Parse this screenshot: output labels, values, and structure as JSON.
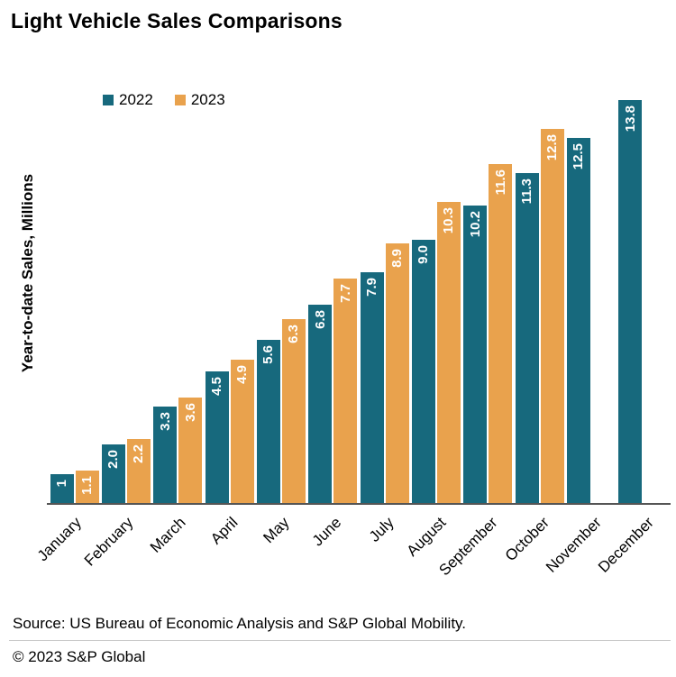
{
  "title": "Light Vehicle Sales Comparisons",
  "y_axis_label": "Year-to-date Sales, Millions",
  "legend": {
    "items": [
      {
        "label": "2022",
        "color": "#17697D"
      },
      {
        "label": "2023",
        "color": "#E9A24D"
      }
    ]
  },
  "footer": {
    "source": "Source: US Bureau of Economic Analysis and S&P Global Mobility.",
    "copyright": "© 2023 S&P Global"
  },
  "chart_data": {
    "type": "bar",
    "title": "Light Vehicle Sales Comparisons",
    "ylabel": "Year-to-date Sales, Millions",
    "xlabel": "",
    "categories": [
      "January",
      "February",
      "March",
      "April",
      "May",
      "June",
      "July",
      "August",
      "September",
      "October",
      "November",
      "December"
    ],
    "series": [
      {
        "name": "2022",
        "color": "#17697D",
        "values": [
          1.0,
          2.0,
          3.3,
          4.5,
          5.6,
          6.8,
          7.9,
          9.0,
          10.2,
          11.3,
          12.5,
          13.8
        ],
        "data_labels": [
          "1",
          "2.0",
          "3.3",
          "4.5",
          "5.6",
          "6.8",
          "7.9",
          "9.0",
          "10.2",
          "11.3",
          "12.5",
          "13.8"
        ]
      },
      {
        "name": "2023",
        "color": "#E9A24D",
        "values": [
          1.1,
          2.2,
          3.6,
          4.9,
          6.3,
          7.7,
          8.9,
          10.3,
          11.6,
          12.8,
          null,
          null
        ],
        "data_labels": [
          "1.1",
          "2.2",
          "3.6",
          "4.9",
          "6.3",
          "7.7",
          "8.9",
          "10.3",
          "11.6",
          "12.8",
          null,
          null
        ]
      }
    ],
    "ylim": [
      0,
      14.2
    ],
    "grid": false,
    "legend_position": "top-left",
    "data_label_position": "inside-top",
    "data_label_rotation": "bottom-to-top",
    "x_tick_rotation": 45
  }
}
